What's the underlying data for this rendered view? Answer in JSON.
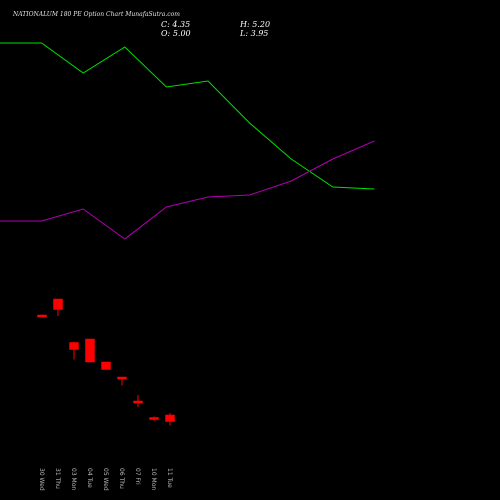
{
  "header": {
    "title": "NATIONALUM 180 PE Option Chart MunafaSutra.com",
    "close_label": "C:",
    "close_value": "4.35",
    "high_label": "H:",
    "high_value": "5.20",
    "open_label": "O:",
    "open_value": "5.00",
    "low_label": "L:",
    "low_value": "3.95"
  },
  "colors": {
    "background": "#000000",
    "up": "#00ff00",
    "down": "#ff0000",
    "ma_fast": "#00e000",
    "ma_slow": "#b000b0"
  },
  "chart_data": {
    "type": "candlestick",
    "categories": [
      "30 Wed",
      "31 Thu",
      "03 Mon",
      "04 Tue",
      "05 Wed",
      "06 Thu",
      "07 Fri",
      "10 Mon",
      "11 Tue"
    ],
    "candles": [
      {
        "open": 15.0,
        "high": 15.05,
        "low": 14.9,
        "close": 14.95
      },
      {
        "open": 16.6,
        "high": 16.6,
        "low": 14.9,
        "close": 15.55
      },
      {
        "open": 12.25,
        "high": 12.3,
        "low": 10.55,
        "close": 11.55
      },
      {
        "open": 12.6,
        "high": 12.6,
        "low": 10.3,
        "close": 10.3
      },
      {
        "open": 10.3,
        "high": 10.3,
        "low": 9.55,
        "close": 9.55
      },
      {
        "open": 8.8,
        "high": 8.8,
        "low": 7.95,
        "close": 8.7
      },
      {
        "open": 6.4,
        "high": 7.0,
        "low": 5.8,
        "close": 6.2
      },
      {
        "open": 4.75,
        "high": 4.85,
        "low": 4.4,
        "close": 4.55
      },
      {
        "open": 5.0,
        "high": 5.2,
        "low": 3.95,
        "close": 4.35
      }
    ],
    "ma_fast": [
      42.2,
      42.2,
      39.2,
      41.8,
      37.8,
      38.4,
      34.2,
      30.6,
      27.8,
      27.6
    ],
    "ma_slow": [
      24.4,
      24.4,
      25.6,
      22.6,
      25.8,
      26.8,
      27.0,
      28.4,
      30.6,
      32.4
    ],
    "grid": false
  }
}
